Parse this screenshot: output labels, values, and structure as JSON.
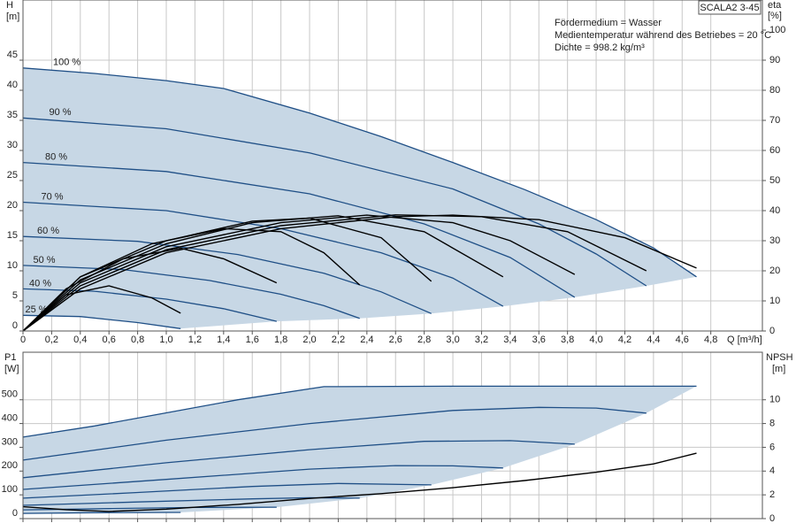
{
  "chart_data": [
    {
      "type": "line",
      "title": "SCALA2 3-45",
      "annotations": [
        "Fördermedium = Wasser",
        "Medientemperatur während des Betriebes = 20 °C",
        "Dichte = 998.2 kg/m³"
      ],
      "ylabel": "H",
      "yunit": "[m]",
      "y2label": "eta",
      "y2unit": "[%]",
      "xlabel": "Q [m³/h]",
      "xlim": [
        0,
        5.16
      ],
      "xticks": [
        0,
        {
          "value": 0.2,
          "label": "0,2"
        },
        {
          "value": 0.4,
          "label": "0,4"
        },
        {
          "value": 0.6,
          "label": "0,6"
        },
        {
          "value": 0.8,
          "label": "0,8"
        },
        {
          "value": 1.0,
          "label": "1,0"
        },
        {
          "value": 1.2,
          "label": "1,2"
        },
        {
          "value": 1.4,
          "label": "1,4"
        },
        {
          "value": 1.6,
          "label": "1,6"
        },
        {
          "value": 1.8,
          "label": "1,8"
        },
        {
          "value": 2.0,
          "label": "2,0"
        },
        {
          "value": 2.2,
          "label": "2,2"
        },
        {
          "value": 2.4,
          "label": "2,4"
        },
        {
          "value": 2.6,
          "label": "2,6"
        },
        {
          "value": 2.8,
          "label": "2,8"
        },
        {
          "value": 3.0,
          "label": "3,0"
        },
        {
          "value": 3.2,
          "label": "3,2"
        },
        {
          "value": 3.4,
          "label": "3,4"
        },
        {
          "value": 3.6,
          "label": "3,6"
        },
        {
          "value": 3.8,
          "label": "3,8"
        },
        {
          "value": 4.0,
          "label": "4,0"
        },
        {
          "value": 4.2,
          "label": "4,2"
        },
        {
          "value": 4.4,
          "label": "4,4"
        },
        {
          "value": 4.6,
          "label": "4,6"
        },
        {
          "value": 4.8,
          "label": "4,8"
        }
      ],
      "ylim": [
        0,
        55
      ],
      "yticks": [
        0,
        5,
        10,
        15,
        20,
        25,
        30,
        35,
        40,
        45
      ],
      "y2lim": [
        0,
        110
      ],
      "y2ticks": [
        0,
        10,
        20,
        30,
        40,
        50,
        60,
        70,
        80,
        90,
        100
      ],
      "grid": true,
      "series": [
        {
          "name": "100 %",
          "color": "#1f4f86",
          "x": [
            0,
            0.5,
            1.0,
            1.4,
            2.0,
            2.5,
            3.0,
            3.5,
            4.0,
            4.4,
            4.7
          ],
          "values": [
            43.7,
            42.8,
            41.6,
            40.3,
            36.2,
            32.3,
            28.0,
            23.5,
            18.5,
            13.8,
            9.0
          ]
        },
        {
          "name": "90 %",
          "color": "#1f4f86",
          "x": [
            0,
            1.0,
            2.0,
            3.0,
            3.6,
            4.0,
            4.35
          ],
          "values": [
            35.4,
            33.6,
            29.6,
            23.6,
            17.8,
            12.8,
            7.5
          ]
        },
        {
          "name": "80 %",
          "color": "#1f4f86",
          "x": [
            0,
            1.0,
            2.0,
            2.8,
            3.4,
            3.85
          ],
          "values": [
            28.0,
            26.5,
            22.8,
            17.8,
            12.2,
            5.6
          ]
        },
        {
          "name": "70 %",
          "color": "#1f4f86",
          "x": [
            0,
            1.0,
            1.8,
            2.5,
            3.0,
            3.35
          ],
          "values": [
            21.4,
            20.0,
            17.0,
            13.0,
            8.8,
            4.1
          ]
        },
        {
          "name": "60 %",
          "color": "#1f4f86",
          "x": [
            0,
            0.8,
            1.5,
            2.1,
            2.5,
            2.85
          ],
          "values": [
            15.7,
            14.9,
            12.7,
            9.6,
            6.5,
            2.9
          ]
        },
        {
          "name": "50 %",
          "color": "#1f4f86",
          "x": [
            0,
            0.7,
            1.3,
            1.8,
            2.1,
            2.35
          ],
          "values": [
            10.9,
            10.2,
            8.4,
            6.1,
            4.2,
            2.1
          ]
        },
        {
          "name": "40 %",
          "color": "#1f4f86",
          "x": [
            0,
            0.5,
            1.0,
            1.4,
            1.77
          ],
          "values": [
            7.0,
            6.6,
            5.3,
            3.7,
            1.6
          ]
        },
        {
          "name": "25 %",
          "color": "#1f4f86",
          "x": [
            0,
            0.4,
            0.8,
            1.1
          ],
          "values": [
            2.6,
            2.4,
            1.4,
            0.4
          ]
        },
        {
          "axis": "y2",
          "color": "#000000",
          "x": [
            0,
            0.4,
            1.0,
            1.8,
            2.6,
            3.0,
            3.6,
            4.2,
            4.7
          ],
          "values": [
            0,
            14,
            26,
            34,
            38,
            38.5,
            37,
            31,
            20.9
          ]
        },
        {
          "axis": "y2",
          "color": "#000000",
          "x": [
            0,
            0.4,
            1.0,
            1.8,
            2.6,
            3.2,
            3.8,
            4.35
          ],
          "values": [
            0,
            15,
            27,
            35,
            38.6,
            38,
            33,
            20
          ]
        },
        {
          "axis": "y2",
          "color": "#000000",
          "x": [
            0,
            0.4,
            1.0,
            1.8,
            2.4,
            3.0,
            3.4,
            3.85
          ],
          "values": [
            0,
            16,
            28,
            36,
            38.5,
            36,
            30,
            18.8
          ]
        },
        {
          "axis": "y2",
          "color": "#000000",
          "x": [
            0,
            0.4,
            1.0,
            1.6,
            2.2,
            2.8,
            3.35
          ],
          "values": [
            0,
            17,
            29,
            36,
            38.3,
            33,
            18
          ]
        },
        {
          "axis": "y2",
          "color": "#000000",
          "x": [
            0,
            0.4,
            1.0,
            1.6,
            2.0,
            2.5,
            2.85
          ],
          "values": [
            0,
            18,
            30,
            36.5,
            37.5,
            31,
            16.5
          ]
        },
        {
          "axis": "y2",
          "color": "#000000",
          "x": [
            0,
            0.4,
            0.9,
            1.4,
            1.8,
            2.1,
            2.35
          ],
          "values": [
            0,
            18,
            29,
            34,
            33,
            26,
            15.3
          ]
        },
        {
          "axis": "y2",
          "color": "#000000",
          "x": [
            0,
            0.3,
            0.7,
            1.1,
            1.4,
            1.77
          ],
          "values": [
            0,
            14,
            24,
            27.5,
            24,
            16
          ]
        },
        {
          "axis": "y2",
          "color": "#000000",
          "x": [
            0,
            0.3,
            0.6,
            0.9,
            1.1
          ],
          "values": [
            0,
            12,
            15,
            11,
            5.9
          ]
        }
      ]
    },
    {
      "type": "line",
      "ylabel": "P1",
      "yunit": "[W]",
      "y2label": "NPSH",
      "y2unit": "[m]",
      "xlim": [
        0,
        5.16
      ],
      "ylim": [
        0,
        700
      ],
      "yticks": [
        0,
        100,
        200,
        300,
        400,
        500
      ],
      "y2lim": [
        0,
        14
      ],
      "y2ticks": [
        0,
        2,
        4,
        6,
        8,
        10
      ],
      "grid": true,
      "series": [
        {
          "color": "#1f4f86",
          "x": [
            0,
            0.5,
            1.0,
            1.5,
            2.1,
            3.0,
            4.0,
            4.7
          ],
          "values": [
            343,
            390,
            445,
            500,
            555,
            557,
            557,
            557
          ]
        },
        {
          "color": "#1f4f86",
          "x": [
            0,
            1.0,
            2.0,
            3.0,
            3.6,
            4.0,
            4.35
          ],
          "values": [
            246,
            330,
            400,
            455,
            468,
            465,
            444
          ]
        },
        {
          "color": "#1f4f86",
          "x": [
            0,
            1.0,
            2.0,
            2.8,
            3.4,
            3.85
          ],
          "values": [
            172,
            235,
            290,
            325,
            328,
            313
          ]
        },
        {
          "color": "#1f4f86",
          "x": [
            0,
            1.0,
            2.0,
            2.6,
            3.0,
            3.35
          ],
          "values": [
            123,
            165,
            208,
            223,
            222,
            213
          ]
        },
        {
          "color": "#1f4f86",
          "x": [
            0,
            0.8,
            1.6,
            2.2,
            2.85
          ],
          "values": [
            86,
            110,
            135,
            148,
            142
          ]
        },
        {
          "color": "#1f4f86",
          "x": [
            0,
            0.8,
            1.6,
            2.0,
            2.35
          ],
          "values": [
            56,
            70,
            83,
            88,
            86
          ]
        },
        {
          "color": "#1f4f86",
          "x": [
            0,
            0.6,
            1.2,
            1.77
          ],
          "values": [
            37,
            42,
            47,
            48
          ]
        },
        {
          "color": "#1f4f86",
          "x": [
            0,
            0.5,
            1.1
          ],
          "values": [
            22,
            25,
            26
          ]
        },
        {
          "axis": "y2",
          "color": "#000000",
          "x": [
            0,
            0.3,
            0.6,
            1.0,
            1.5,
            2.0,
            2.5,
            3.0,
            3.5,
            4.0,
            4.4,
            4.7
          ],
          "values": [
            1.0,
            0.75,
            0.6,
            0.8,
            1.2,
            1.7,
            2.1,
            2.6,
            3.2,
            3.9,
            4.6,
            5.5
          ]
        }
      ]
    }
  ]
}
